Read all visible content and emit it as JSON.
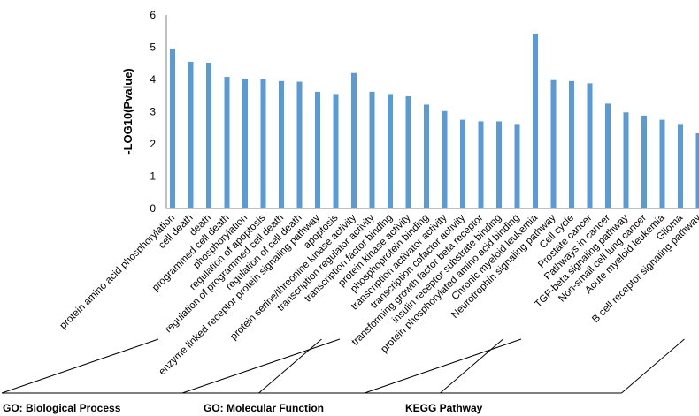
{
  "chart_data": {
    "type": "bar",
    "ylabel": "-LOG10(Pvalue)",
    "ylim": [
      0,
      6
    ],
    "yticks": [
      0,
      1,
      2,
      3,
      4,
      5,
      6
    ],
    "grid": false,
    "bar_color": "#5B9BD5",
    "categories": [
      "protein amino acid phosphorylation",
      "cell death",
      "death",
      "programmed cell death",
      "phosphorylation",
      "regulation of apoptosis",
      "regulation of programmed cell death",
      "regulation of cell death",
      "enzyme linked receptor protein signaling pathway",
      "apoptosis",
      "protein serine/threonine kinase activity",
      "transcription regulator activity",
      "transcription factor binding",
      "protein kinase activity",
      "phosphoprotein binding",
      "transcription activator activity",
      "transcription cofactor activity",
      "transforming growth factor beta receptor",
      "insulin receptor substrate binding",
      "protein phosphorylated amino acid binding",
      "Chronic myeloid leukemia",
      "Neurotrophin signaling pathway",
      "Cell cycle",
      "Prostate cancer",
      "Pathways in cancer",
      "TGF-beta signaling pathway",
      "Non-small cell lung cancer",
      "Acute myeloid leukemia",
      "Glioma",
      "B cell receptor signaling pathway"
    ],
    "values": [
      4.95,
      4.55,
      4.52,
      4.08,
      4.02,
      4.0,
      3.95,
      3.93,
      3.62,
      3.55,
      4.2,
      3.62,
      3.55,
      3.48,
      3.22,
      3.02,
      2.75,
      2.7,
      2.7,
      2.62,
      5.42,
      3.98,
      3.95,
      3.88,
      3.25,
      2.98,
      2.88,
      2.75,
      2.62,
      2.33
    ],
    "groups": [
      {
        "name": "GO: Biological Process",
        "start": 0,
        "end": 9
      },
      {
        "name": "GO: Molecular Function",
        "start": 10,
        "end": 19
      },
      {
        "name": "KEGG Pathway",
        "start": 20,
        "end": 29
      }
    ]
  }
}
